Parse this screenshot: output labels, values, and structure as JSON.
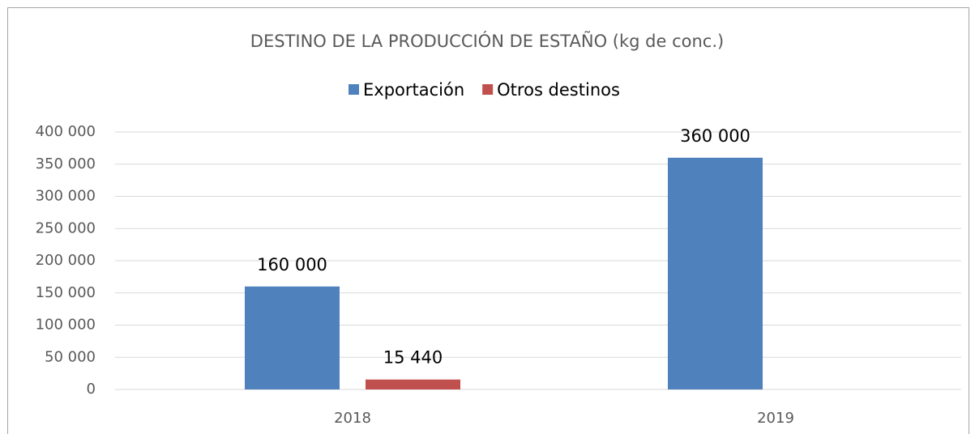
{
  "chart_data": {
    "type": "bar",
    "title": "DESTINO DE LA PRODUCCIÓN DE ESTAÑO (kg de conc.)",
    "categories": [
      "2018",
      "2019"
    ],
    "series": [
      {
        "name": "Exportación",
        "color": "#4f81bd",
        "values": [
          160000,
          360000
        ],
        "value_labels": [
          "160 000",
          "360 000"
        ]
      },
      {
        "name": "Otros destinos",
        "color": "#c0504d",
        "values": [
          15440,
          null
        ],
        "value_labels": [
          "15 440",
          null
        ]
      }
    ],
    "ylim": [
      0,
      400000
    ],
    "yticks": [
      0,
      {
        "value": 50000,
        "label": "50 000"
      },
      {
        "value": 100000,
        "label": "100 000"
      },
      {
        "value": 150000,
        "label": "150 000"
      },
      {
        "value": 200000,
        "label": "200 000"
      },
      {
        "value": 250000,
        "label": "250 000"
      },
      {
        "value": 300000,
        "label": "300 000"
      },
      {
        "value": 350000,
        "label": "350 000"
      },
      {
        "value": 400000,
        "label": "400 000"
      }
    ],
    "grid": true,
    "legend": "top"
  }
}
